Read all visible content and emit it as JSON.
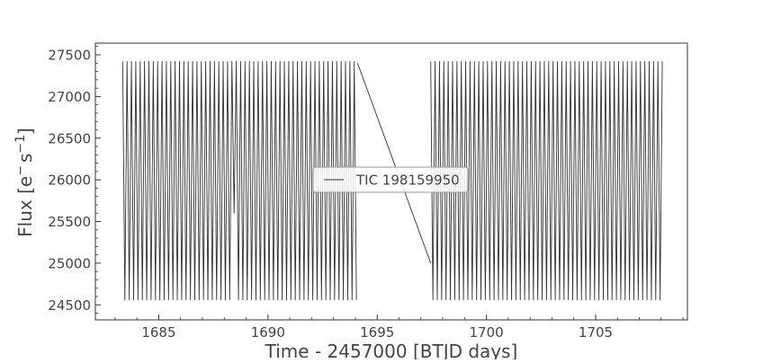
{
  "chart_data": {
    "type": "line",
    "title": "",
    "xlabel": "Time - 2457000 [BTJD days]",
    "ylabel_main": "Flux [e",
    "ylabel_sup1": "−",
    "ylabel_mid": "s",
    "ylabel_sup2": "−1",
    "ylabel_end": "]",
    "xlim": [
      1682.1,
      1709.2
    ],
    "ylim": [
      24320,
      27640
    ],
    "xticks": [
      1685,
      1690,
      1695,
      1700,
      1705
    ],
    "yticks": [
      24500,
      25000,
      25500,
      26000,
      26500,
      27000,
      27500
    ],
    "grid": false,
    "legend": {
      "placement": "center",
      "entries": [
        "TIC 198159950"
      ]
    },
    "series": [
      {
        "name": "TIC 198159950",
        "color": "#333333",
        "segments": [
          {
            "start": 1683.35,
            "end": 1694.1
          },
          {
            "start": 1697.45,
            "end": 1708.1
          }
        ],
        "period_days": 0.2,
        "max_flux": 27420,
        "min_flux": 24560,
        "dips": [
          {
            "start": 1688.3,
            "end": 1688.5,
            "min_flux": 25600
          }
        ],
        "gap_connector": {
          "from_x": 1694.1,
          "from_y": 27400,
          "to_x": 1697.45,
          "to_y": 25000
        }
      }
    ]
  }
}
